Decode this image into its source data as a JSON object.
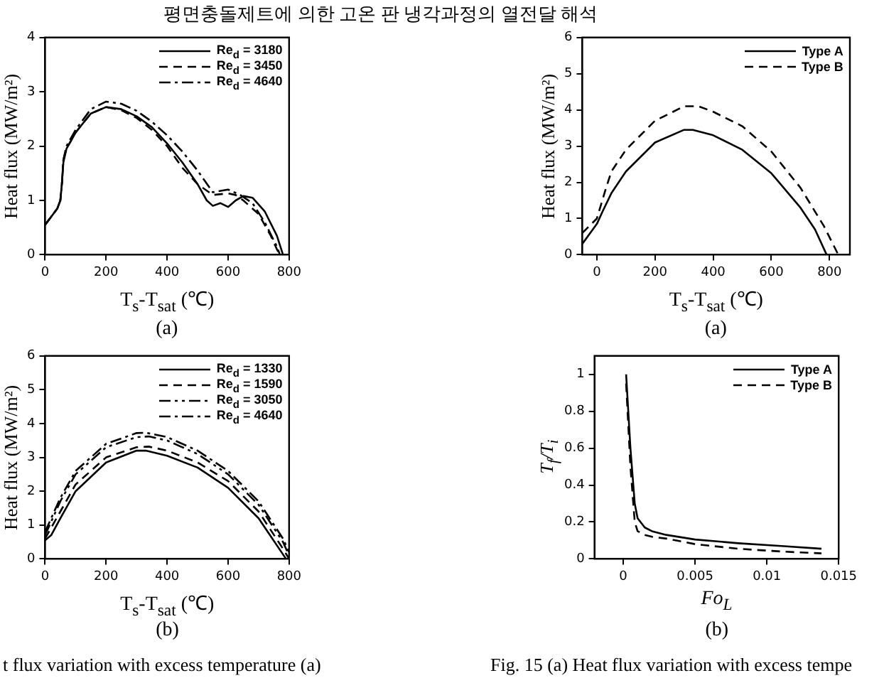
{
  "chart_data": [
    {
      "type": "line",
      "xlabel": "T$_{s}$-T$_{sat}$ (℃)",
      "ylabel": "Heat flux (MW/m²)",
      "xlim": [
        0,
        800
      ],
      "xticks": [
        0,
        200,
        400,
        600,
        800
      ],
      "ylim": [
        0,
        4
      ],
      "yticks": [
        0,
        1,
        2,
        3,
        4
      ],
      "legend": "top right",
      "annotations": [
        "평면충돌제트에 의한 고온 판 냉각과정의 열전달 해석",
        "(a)"
      ],
      "series": [
        {
          "name": "Re$_{d}$ = 3180",
          "color": "#000000",
          "line_style": "solid",
          "x": [
            0,
            20,
            40,
            50,
            55,
            60,
            70,
            100,
            150,
            200,
            250,
            300,
            350,
            400,
            450,
            500,
            530,
            550,
            575,
            600,
            625,
            650,
            680,
            720,
            760,
            780
          ],
          "values": [
            0.55,
            0.7,
            0.85,
            1.0,
            1.3,
            1.7,
            1.95,
            2.25,
            2.6,
            2.72,
            2.68,
            2.55,
            2.35,
            2.05,
            1.7,
            1.3,
            1.0,
            0.9,
            0.95,
            0.88,
            1.0,
            1.08,
            1.05,
            0.8,
            0.35,
            0.0
          ]
        },
        {
          "name": "Re$_{d}$ = 3450",
          "color": "#000000",
          "line_style": "dashed",
          "x": [
            0,
            20,
            40,
            50,
            55,
            60,
            70,
            100,
            150,
            200,
            250,
            300,
            350,
            400,
            450,
            500,
            550,
            600,
            625,
            650,
            700,
            740,
            760,
            770
          ],
          "values": [
            0.55,
            0.7,
            0.85,
            1.0,
            1.3,
            1.75,
            1.95,
            2.25,
            2.6,
            2.72,
            2.66,
            2.52,
            2.3,
            2.0,
            1.6,
            1.3,
            1.1,
            1.13,
            1.1,
            1.0,
            0.75,
            0.35,
            0.1,
            0.0
          ]
        },
        {
          "name": "Re$_{d}$ = 4640",
          "color": "#000000",
          "line_style": "dashdot",
          "x": [
            0,
            20,
            40,
            50,
            55,
            60,
            70,
            100,
            150,
            200,
            250,
            300,
            350,
            400,
            450,
            500,
            550,
            600,
            640,
            680,
            720,
            760,
            770
          ],
          "values": [
            0.55,
            0.7,
            0.85,
            1.0,
            1.3,
            1.75,
            2.0,
            2.3,
            2.68,
            2.82,
            2.78,
            2.65,
            2.45,
            2.2,
            1.9,
            1.55,
            1.15,
            1.2,
            1.1,
            0.95,
            0.6,
            0.15,
            0.0
          ]
        }
      ]
    },
    {
      "type": "line",
      "xlabel": "T$_{s}$-T$_{sat}$ (℃)",
      "ylabel": "Heat flux (MW/m²)",
      "xlim": [
        -50,
        870
      ],
      "xticks": [
        0,
        200,
        400,
        600,
        800
      ],
      "ylim": [
        0,
        6
      ],
      "yticks": [
        0,
        1,
        2,
        3,
        4,
        5,
        6
      ],
      "legend": "top right",
      "annotations": [
        "(a)"
      ],
      "series": [
        {
          "name": "Type A",
          "color": "#000000",
          "line_style": "solid",
          "x": [
            -50,
            0,
            20,
            50,
            100,
            200,
            300,
            330,
            400,
            500,
            600,
            700,
            750,
            790
          ],
          "values": [
            0.3,
            0.85,
            1.2,
            1.7,
            2.3,
            3.1,
            3.45,
            3.45,
            3.3,
            2.9,
            2.25,
            1.3,
            0.7,
            0.0
          ]
        },
        {
          "name": "Type B",
          "color": "#000000",
          "line_style": "dashed",
          "x": [
            -50,
            0,
            30,
            50,
            100,
            200,
            300,
            350,
            400,
            500,
            600,
            700,
            780,
            830
          ],
          "values": [
            0.6,
            1.0,
            1.8,
            2.3,
            2.9,
            3.7,
            4.1,
            4.1,
            3.95,
            3.55,
            2.85,
            1.85,
            0.8,
            0.0
          ]
        }
      ]
    },
    {
      "type": "line",
      "xlabel": "T$_{s}$-T$_{sat}$ (℃)",
      "ylabel": "Heat flux (MW/m²)",
      "xlim": [
        0,
        800
      ],
      "xticks": [
        0,
        200,
        400,
        600,
        800
      ],
      "ylim": [
        0,
        6
      ],
      "yticks": [
        0,
        1,
        2,
        3,
        4,
        5,
        6
      ],
      "legend": "top right",
      "annotations": [
        "(b)",
        "t flux variation with excess temperature (a)"
      ],
      "series": [
        {
          "name": "Re$_{d}$ = 1330",
          "color": "#000000",
          "line_style": "solid",
          "x": [
            0,
            20,
            50,
            100,
            200,
            300,
            330,
            400,
            500,
            600,
            700,
            760,
            790
          ],
          "values": [
            0.55,
            0.7,
            1.2,
            2.0,
            2.85,
            3.2,
            3.2,
            3.05,
            2.7,
            2.1,
            1.2,
            0.4,
            0.0
          ]
        },
        {
          "name": "Re$_{d}$ = 1590",
          "color": "#000000",
          "line_style": "dashed",
          "x": [
            0,
            50,
            100,
            200,
            300,
            340,
            400,
            500,
            600,
            700,
            780,
            800
          ],
          "values": [
            0.6,
            1.4,
            2.2,
            3.0,
            3.3,
            3.32,
            3.2,
            2.85,
            2.3,
            1.4,
            0.3,
            0.0
          ]
        },
        {
          "name": "Re$_{d}$ = 3050",
          "color": "#000000",
          "line_style": "dashdotdot",
          "x": [
            0,
            50,
            100,
            200,
            300,
            340,
            400,
            500,
            600,
            700,
            780,
            800
          ],
          "values": [
            0.7,
            1.7,
            2.5,
            3.3,
            3.6,
            3.62,
            3.5,
            3.1,
            2.5,
            1.6,
            0.5,
            0.1
          ]
        },
        {
          "name": "Re$_{d}$ = 4640",
          "color": "#000000",
          "line_style": "dashdot",
          "x": [
            0,
            50,
            100,
            200,
            300,
            330,
            400,
            500,
            600,
            700,
            780,
            800
          ],
          "values": [
            0.8,
            1.8,
            2.6,
            3.4,
            3.72,
            3.73,
            3.6,
            3.2,
            2.6,
            1.7,
            0.6,
            0.2
          ]
        }
      ]
    },
    {
      "type": "line",
      "xlabel": "Fo$_{L}$",
      "ylabel": "T$_{f}$/T$_{i}$",
      "xlim": [
        -0.002,
        0.015
      ],
      "xticks": [
        0,
        0.005,
        0.01,
        0.015
      ],
      "ylim": [
        0,
        1.1
      ],
      "yticks": [
        0,
        0.2,
        0.4,
        0.6,
        0.8,
        1
      ],
      "legend": "top right",
      "annotations": [
        "(b)",
        "Fig. 15 (a) Heat flux variation with excess tempe"
      ],
      "series": [
        {
          "name": "Type A",
          "color": "#000000",
          "line_style": "solid",
          "x": [
            0.0002,
            0.0005,
            0.0008,
            0.001,
            0.0015,
            0.002,
            0.003,
            0.005,
            0.008,
            0.011,
            0.0138
          ],
          "values": [
            1.0,
            0.6,
            0.3,
            0.22,
            0.17,
            0.15,
            0.13,
            0.105,
            0.085,
            0.07,
            0.055
          ]
        },
        {
          "name": "Type B",
          "color": "#000000",
          "line_style": "dashed",
          "x": [
            0.0002,
            0.0005,
            0.0008,
            0.001,
            0.0015,
            0.002,
            0.003,
            0.005,
            0.008,
            0.011,
            0.0138
          ],
          "values": [
            0.95,
            0.5,
            0.2,
            0.15,
            0.13,
            0.12,
            0.11,
            0.08,
            0.055,
            0.04,
            0.03
          ]
        }
      ]
    }
  ]
}
